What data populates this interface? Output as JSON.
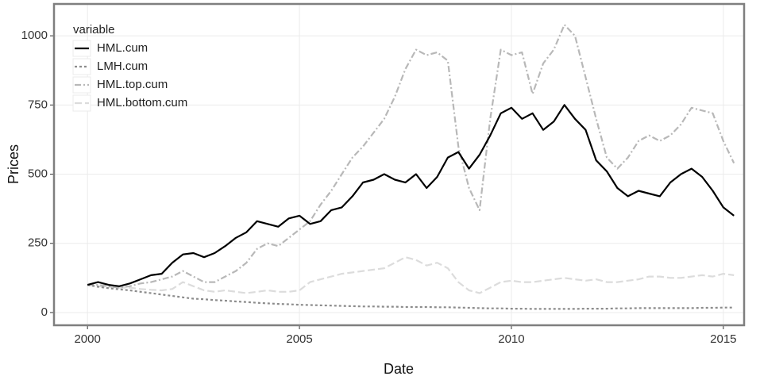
{
  "chart_data": {
    "type": "line",
    "x_label": "Date",
    "y_label": "Prices",
    "x": [
      2000,
      2000.25,
      2000.5,
      2000.75,
      2001,
      2001.25,
      2001.5,
      2001.75,
      2002,
      2002.25,
      2002.5,
      2002.75,
      2003,
      2003.25,
      2003.5,
      2003.75,
      2004,
      2004.25,
      2004.5,
      2004.75,
      2005,
      2005.25,
      2005.5,
      2005.75,
      2006,
      2006.25,
      2006.5,
      2006.75,
      2007,
      2007.25,
      2007.5,
      2007.75,
      2008,
      2008.25,
      2008.5,
      2008.75,
      2009,
      2009.25,
      2009.5,
      2009.75,
      2010,
      2010.25,
      2010.5,
      2010.75,
      2011,
      2011.25,
      2011.5,
      2011.75,
      2012,
      2012.25,
      2012.5,
      2012.75,
      2013,
      2013.25,
      2013.5,
      2013.75,
      2014,
      2014.25,
      2014.5,
      2014.75,
      2015,
      2015.25
    ],
    "series": [
      {
        "name": "HML.cum",
        "color": "#000000",
        "linetype": "solid",
        "values": [
          100,
          110,
          100,
          95,
          105,
          120,
          135,
          140,
          180,
          210,
          215,
          200,
          215,
          240,
          270,
          290,
          330,
          320,
          310,
          340,
          350,
          320,
          330,
          370,
          380,
          420,
          470,
          480,
          500,
          480,
          470,
          500,
          450,
          490,
          560,
          580,
          520,
          570,
          640,
          720,
          740,
          700,
          720,
          660,
          690,
          750,
          700,
          660,
          550,
          510,
          450,
          420,
          440,
          430,
          420,
          470,
          500,
          520,
          490,
          440,
          380,
          350
        ]
      },
      {
        "name": "LMH.cum",
        "color": "#8c8c8c",
        "linetype": "dotted",
        "values": [
          100,
          93,
          88,
          84,
          80,
          75,
          70,
          65,
          60,
          55,
          50,
          48,
          45,
          43,
          40,
          38,
          35,
          33,
          31,
          30,
          28,
          27,
          26,
          25,
          24,
          23,
          22,
          22,
          21,
          21,
          20,
          20,
          20,
          19,
          19,
          18,
          17,
          16,
          15,
          15,
          14,
          14,
          13,
          13,
          13,
          13,
          13,
          14,
          14,
          14,
          15,
          15,
          16,
          16,
          16,
          16,
          16,
          16,
          17,
          17,
          18,
          18
        ]
      },
      {
        "name": "HML.top.cum",
        "color": "#b8b8b8",
        "linetype": "dotdash",
        "values": [
          100,
          100,
          95,
          90,
          95,
          105,
          110,
          120,
          130,
          150,
          130,
          110,
          110,
          130,
          150,
          180,
          230,
          250,
          240,
          270,
          300,
          330,
          390,
          440,
          500,
          560,
          600,
          650,
          700,
          780,
          880,
          950,
          930,
          940,
          910,
          600,
          450,
          370,
          700,
          950,
          930,
          940,
          790,
          900,
          950,
          1040,
          1000,
          850,
          700,
          560,
          520,
          560,
          620,
          640,
          620,
          640,
          680,
          740,
          730,
          720,
          620,
          540
        ]
      },
      {
        "name": "HML.bottom.cum",
        "color": "#dcdcdc",
        "linetype": "longdash",
        "values": [
          100,
          95,
          92,
          90,
          90,
          85,
          82,
          80,
          85,
          110,
          95,
          80,
          75,
          80,
          75,
          70,
          75,
          80,
          75,
          75,
          80,
          110,
          120,
          130,
          140,
          145,
          150,
          155,
          160,
          180,
          200,
          190,
          170,
          180,
          160,
          110,
          80,
          70,
          90,
          110,
          115,
          110,
          110,
          115,
          120,
          125,
          120,
          115,
          120,
          110,
          110,
          115,
          120,
          130,
          130,
          125,
          125,
          130,
          135,
          130,
          140,
          135
        ]
      }
    ],
    "legend_title": "variable",
    "legend_position": "top-left",
    "xlim": [
      1999.21,
      2015.49
    ],
    "xticks": [
      2000,
      2005,
      2010,
      2015
    ],
    "ylim": [
      -46,
      1115
    ],
    "yticks": [
      0,
      250,
      500,
      750,
      1000
    ],
    "grid": true
  }
}
